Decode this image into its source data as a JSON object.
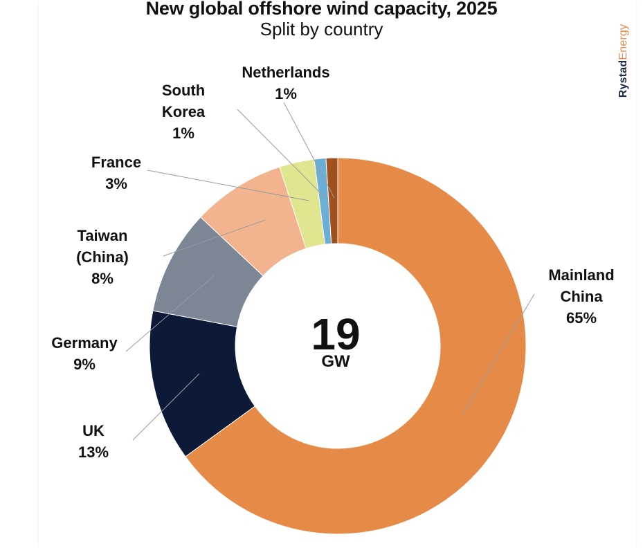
{
  "chart_data": {
    "type": "pie",
    "donut": true,
    "title": "New global offshore wind capacity, 2025",
    "subtitle": "Split by country",
    "center_value": "19",
    "center_unit": "GW",
    "brand_primary": "Rystad",
    "brand_secondary": "Energy",
    "slices": [
      {
        "label": [
          "Mainland",
          "China"
        ],
        "value_label": "65%",
        "value": 65,
        "color": "#E68A47"
      },
      {
        "label": [
          "UK"
        ],
        "value_label": "13%",
        "value": 13,
        "color": "#0C1A38"
      },
      {
        "label": [
          "Germany"
        ],
        "value_label": "9%",
        "value": 9,
        "color": "#7B8794"
      },
      {
        "label": [
          "Taiwan",
          "(China)"
        ],
        "value_label": "8%",
        "value": 8,
        "color": "#F2B48E"
      },
      {
        "label": [
          "France"
        ],
        "value_label": "3%",
        "value": 3,
        "color": "#E0E58F"
      },
      {
        "label": [
          "South",
          "Korea"
        ],
        "value_label": "1%",
        "value": 1,
        "color": "#6BAED6"
      },
      {
        "label": [
          "Netherlands"
        ],
        "value_label": "1%",
        "value": 1,
        "color": "#A0521E"
      }
    ],
    "colors": {
      "leader_line": "#9a9a9a",
      "brand_primary": "#1a2a4a",
      "brand_secondary": "#e8894a"
    }
  }
}
